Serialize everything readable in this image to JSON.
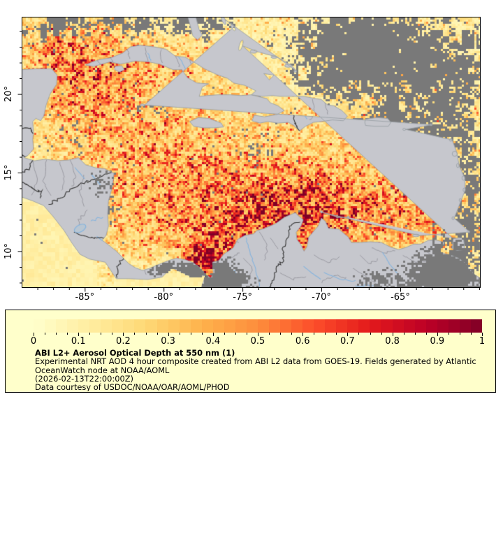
{
  "figure": {
    "map_axes": {
      "lon_ticks": [
        {
          "value": -85,
          "label": "-85°"
        },
        {
          "value": -80,
          "label": "-80°"
        },
        {
          "value": -75,
          "label": "-75°"
        },
        {
          "value": -70,
          "label": "-70°"
        },
        {
          "value": -65,
          "label": "-65°"
        }
      ],
      "lat_ticks": [
        {
          "value": 10,
          "label": "10°"
        },
        {
          "value": 15,
          "label": "15°"
        },
        {
          "value": 20,
          "label": "20°"
        }
      ],
      "lon_minor_step": 1,
      "lat_minor_step": 1
    },
    "legend": {
      "title": "ABI L2+ Aerosol Optical Depth at 550 nm (1)",
      "lines": [
        "Experimental NRT AOD 4 hour composite created from ABI L2 data from GOES-19. Fields generated by Atlantic",
        "OceanWatch node at NOAA/AOML",
        "(2026-02-13T22:00:00Z)",
        "Data courtesy of USDOC/NOAA/OAR/AOML/PHOD"
      ],
      "scale_ticks": [
        {
          "value": 0.0,
          "label": "0"
        },
        {
          "value": 0.1,
          "label": "0.1"
        },
        {
          "value": 0.2,
          "label": "0.2"
        },
        {
          "value": 0.3,
          "label": "0.3"
        },
        {
          "value": 0.4,
          "label": "0.4"
        },
        {
          "value": 0.5,
          "label": "0.5"
        },
        {
          "value": 0.6,
          "label": "0.6"
        },
        {
          "value": 0.7,
          "label": "0.7"
        },
        {
          "value": 0.8,
          "label": "0.8"
        },
        {
          "value": 0.9,
          "label": "0.9"
        },
        {
          "value": 1.0,
          "label": "1"
        }
      ],
      "scale_minor_step": 0.025
    },
    "colors": {
      "colormap_name": "YlOrRd",
      "colormap_stops": [
        "#ffffcc",
        "#ffeda0",
        "#fed976",
        "#feb24c",
        "#fd8d3c",
        "#fc4e2a",
        "#e31a1c",
        "#bd0026",
        "#800026"
      ],
      "legend_bg": "#ffffcb",
      "land": "#c6c7cd",
      "cloud": "#797979",
      "coast": "#9aa0a6",
      "admin_border": "#9a9aa2",
      "national_border": "#3a3a3a",
      "river": "#85b4de",
      "frame": "#000000",
      "page_bg": "#ffffff"
    }
  },
  "chart_data": {
    "type": "heatmap",
    "title": "ABI L2+ Aerosol Optical Depth at 550 nm (1)",
    "variable": "Aerosol Optical Depth at 550 nm",
    "colormap": "YlOrRd",
    "colorbar_range": [
      0,
      1
    ],
    "colorbar_ticks": [
      0,
      0.1,
      0.2,
      0.3,
      0.4,
      0.5,
      0.6,
      0.7,
      0.8,
      0.9,
      1
    ],
    "x_ticks_deg": [
      -85,
      -80,
      -75,
      -70,
      -65
    ],
    "y_ticks_deg": [
      10,
      15,
      20
    ],
    "x_range_deg": [
      -89.0,
      -59.95
    ],
    "y_range_deg": [
      7.71,
      24.87
    ]
  }
}
